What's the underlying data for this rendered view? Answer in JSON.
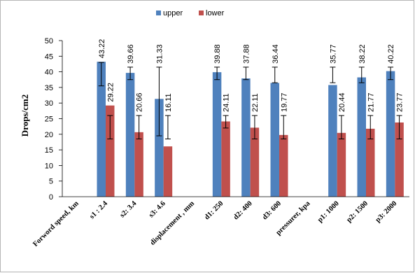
{
  "chart_data": {
    "type": "bar",
    "ylabel": "Drops/cm2",
    "ylim": [
      0,
      50
    ],
    "yticks": [
      0,
      5,
      10,
      15,
      20,
      25,
      30,
      35,
      40,
      45,
      50
    ],
    "categories": [
      "Forword speed, km",
      "s1 :  2.4",
      "s2:  3.4",
      "s3: 4.6",
      "displacement , mm",
      "d1:  250",
      "d2:  400",
      "d3:  600",
      "pressurer, kpa",
      "p1:  1000",
      "p2:  1500",
      "p3: 2000"
    ],
    "legend_position": "top",
    "grid": false,
    "series": [
      {
        "name": "upper",
        "color": "#4f81bd",
        "values": [
          null,
          43.22,
          39.66,
          31.33,
          null,
          39.88,
          37.88,
          36.44,
          null,
          35.77,
          38.22,
          40.22
        ],
        "labels": [
          "",
          "43.22",
          "39.66",
          "31.33",
          "",
          "39.88",
          "37.88",
          "36.44",
          "",
          "35.77",
          "38.22",
          "40.22"
        ],
        "err_low": [
          null,
          35.5,
          37.5,
          19.5,
          null,
          37.5,
          37.5,
          36.5,
          null,
          36.5,
          36.5,
          37.5
        ],
        "err_high": [
          null,
          43,
          41.5,
          41.5,
          null,
          41.5,
          41.5,
          41.5,
          null,
          41.5,
          41.5,
          41.5
        ]
      },
      {
        "name": "lower",
        "color": "#c0504d",
        "values": [
          null,
          29.22,
          20.66,
          16.11,
          null,
          24.11,
          22.11,
          19.77,
          null,
          20.44,
          21.77,
          23.77
        ],
        "labels": [
          "",
          "29.22",
          "20.66",
          "16.11",
          "",
          "24.11",
          "22.11",
          "19.77",
          "",
          "20.44",
          "21.77",
          "23.77"
        ],
        "err_low": [
          null,
          18.5,
          18.5,
          18.5,
          null,
          22,
          18.5,
          18.5,
          null,
          18.5,
          18.5,
          18.5
        ],
        "err_high": [
          null,
          26,
          26,
          26,
          null,
          26,
          26,
          26,
          null,
          26,
          26,
          26
        ]
      }
    ]
  }
}
